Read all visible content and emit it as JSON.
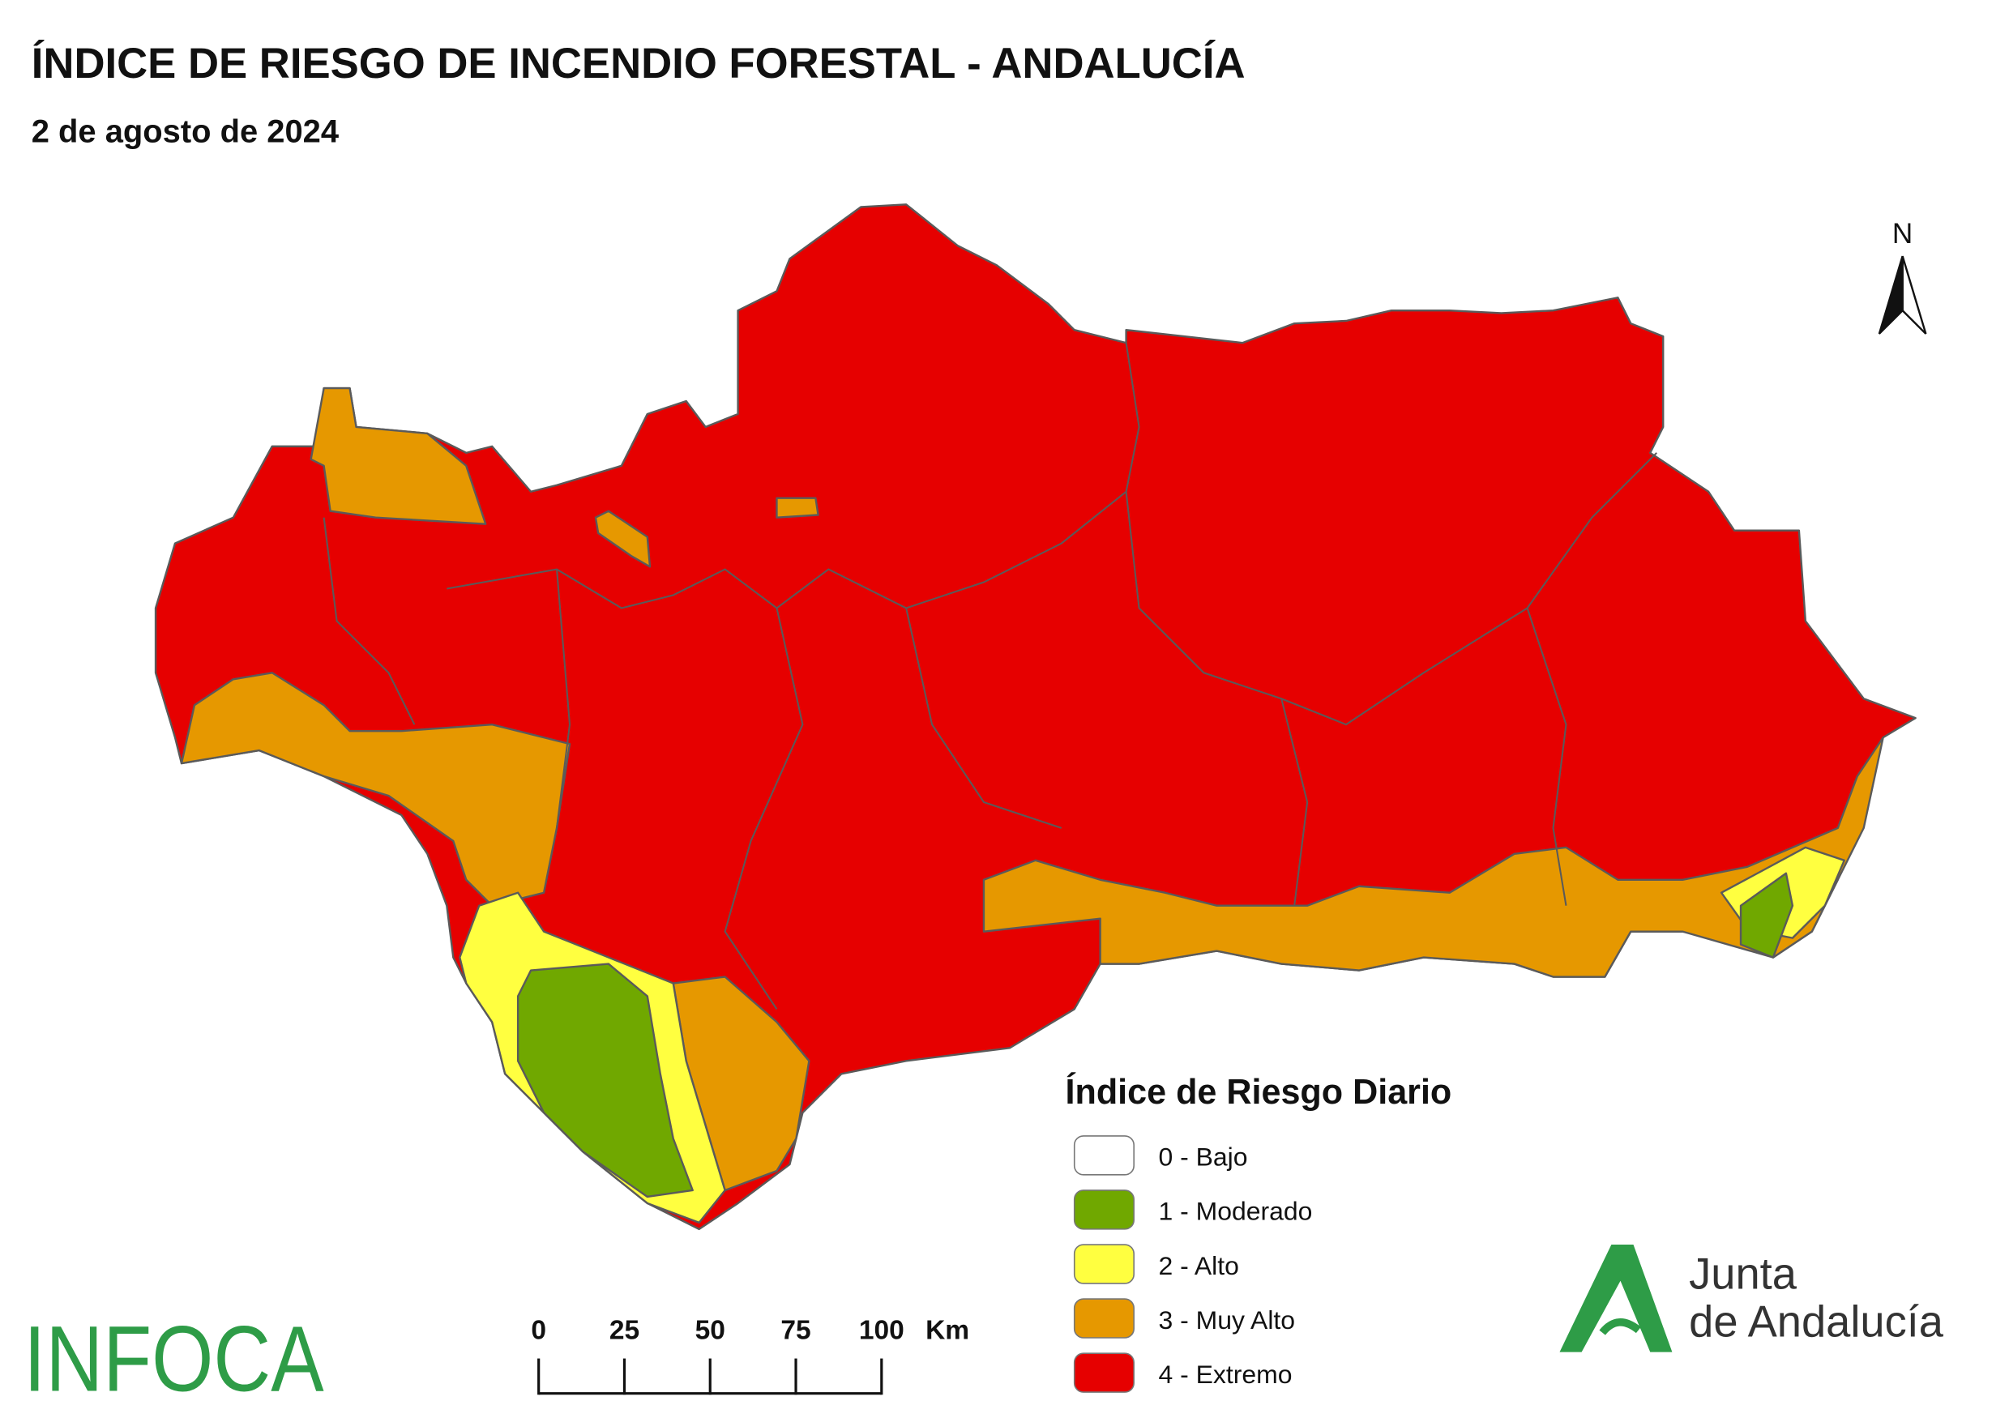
{
  "header": {
    "title": "ÍNDICE DE RIESGO DE INCENDIO FORESTAL - ANDALUCÍA",
    "subtitle": "2 de agosto de 2024"
  },
  "north_arrow": "N",
  "legend": {
    "title": "Índice de Riesgo Diario",
    "items": [
      {
        "label": "0 - Bajo",
        "color": "#ffffff"
      },
      {
        "label": "1 - Moderado",
        "color": "#70a800"
      },
      {
        "label": "2 - Alto",
        "color": "#ffff40"
      },
      {
        "label": "3 - Muy Alto",
        "color": "#e69800"
      },
      {
        "label": "4 - Extremo",
        "color": "#e60000"
      }
    ]
  },
  "scale_bar": {
    "ticks": [
      0,
      25,
      50,
      75,
      100
    ],
    "unit": "Km"
  },
  "logos": {
    "infoca": "INFOCA",
    "junta_line1": "Junta",
    "junta_line2": "de Andalucía"
  }
}
